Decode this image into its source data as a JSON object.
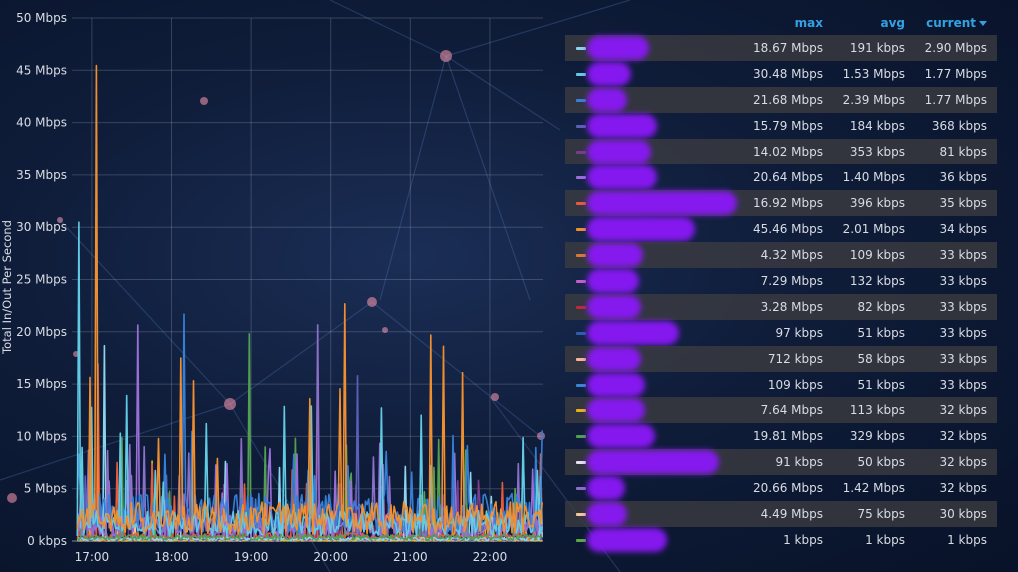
{
  "chart_data": {
    "type": "line",
    "ylabel": "Total In/Out Per Second",
    "y_ticks": [
      "0 kbps",
      "5 Mbps",
      "10 Mbps",
      "15 Mbps",
      "20 Mbps",
      "25 Mbps",
      "30 Mbps",
      "35 Mbps",
      "40 Mbps",
      "45 Mbps",
      "50 Mbps"
    ],
    "ylim": [
      0,
      50
    ],
    "y_unit": "Mbps",
    "x_ticks": [
      "17:00",
      "18:00",
      "19:00",
      "20:00",
      "21:00",
      "22:00"
    ],
    "xlim": [
      "16:45",
      "22:40"
    ],
    "grid": true,
    "series": [
      {
        "color": "#8ad4ec",
        "max": "18.67 Mbps",
        "avg": "191 kbps",
        "current": "2.90 Mbps",
        "peak": 18.67,
        "peak_time": "17:10"
      },
      {
        "color": "#62cbe4",
        "max": "30.48 Mbps",
        "avg": "1.53 Mbps",
        "current": "1.77 Mbps",
        "peak": 30.48,
        "peak_time": "16:50"
      },
      {
        "color": "#3580d6",
        "max": "21.68 Mbps",
        "avg": "2.39 Mbps",
        "current": "1.77 Mbps",
        "peak": 21.68,
        "peak_time": "18:10"
      },
      {
        "color": "#5a60b8",
        "max": "15.79 Mbps",
        "avg": "184 kbps",
        "current": "368 kbps",
        "peak": 15.79,
        "peak_time": "20:20"
      },
      {
        "color": "#7a3c8e",
        "max": "14.02 Mbps",
        "avg": "353 kbps",
        "current": "81 kbps",
        "peak": 14.02,
        "peak_time": "19:50"
      },
      {
        "color": "#9a6fd8",
        "max": "20.64 Mbps",
        "avg": "1.40 Mbps",
        "current": "36 kbps",
        "peak": 20.64,
        "peak_time": "17:35"
      },
      {
        "color": "#e85a3a",
        "max": "16.92 Mbps",
        "avg": "396 kbps",
        "current": "35 kbps",
        "peak": 16.92,
        "peak_time": "17:05"
      },
      {
        "color": "#f08f30",
        "max": "45.46 Mbps",
        "avg": "2.01 Mbps",
        "current": "34 kbps",
        "peak": 45.46,
        "peak_time": "17:04"
      },
      {
        "color": "#d87a30",
        "max": "4.32 Mbps",
        "avg": "109 kbps",
        "current": "33 kbps",
        "peak": 4.32,
        "peak_time": "18:40"
      },
      {
        "color": "#c060c8",
        "max": "7.29 Mbps",
        "avg": "132 kbps",
        "current": "33 kbps",
        "peak": 7.29,
        "peak_time": "20:40"
      },
      {
        "color": "#c02838",
        "max": "3.28 Mbps",
        "avg": "82 kbps",
        "current": "33 kbps",
        "peak": 3.28,
        "peak_time": "21:10"
      },
      {
        "color": "#2a5fb0",
        "max": "97 kbps",
        "avg": "51 kbps",
        "current": "33 kbps",
        "peak": 0.097,
        "peak_time": "19:00"
      },
      {
        "color": "#f4b890",
        "max": "712 kbps",
        "avg": "58 kbps",
        "current": "33 kbps",
        "peak": 0.712,
        "peak_time": "18:20"
      },
      {
        "color": "#3a86d4",
        "max": "109 kbps",
        "avg": "51 kbps",
        "current": "33 kbps",
        "peak": 0.109,
        "peak_time": "19:30"
      },
      {
        "color": "#e8b020",
        "max": "7.64 Mbps",
        "avg": "113 kbps",
        "current": "32 kbps",
        "peak": 7.64,
        "peak_time": "17:45"
      },
      {
        "color": "#50a050",
        "max": "19.81 Mbps",
        "avg": "329 kbps",
        "current": "32 kbps",
        "peak": 19.81,
        "peak_time": "18:59"
      },
      {
        "color": "#e8e0f0",
        "max": "91 kbps",
        "avg": "50 kbps",
        "current": "32 kbps",
        "peak": 0.091,
        "peak_time": "20:10"
      },
      {
        "color": "#8c70c8",
        "max": "20.66 Mbps",
        "avg": "1.42 Mbps",
        "current": "32 kbps",
        "peak": 20.66,
        "peak_time": "19:50"
      },
      {
        "color": "#f2c898",
        "max": "4.49 Mbps",
        "avg": "75 kbps",
        "current": "30 kbps",
        "peak": 4.49,
        "peak_time": "17:20"
      },
      {
        "color": "#58a848",
        "max": "1 kbps",
        "avg": "1 kbps",
        "current": "1 kbps",
        "peak": 0.001,
        "peak_time": "21:00"
      }
    ]
  },
  "legend": {
    "headers": {
      "max": "max",
      "avg": "avg",
      "current": "current"
    },
    "sort_column": "current",
    "sort_direction": "descending",
    "names_redacted": true
  }
}
